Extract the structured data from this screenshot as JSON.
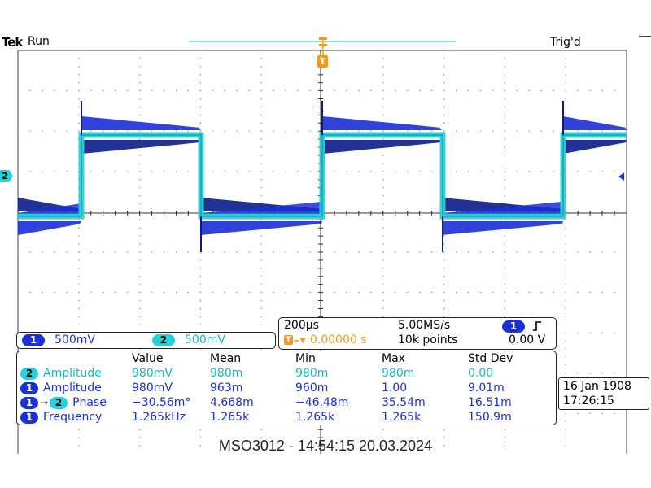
{
  "header": {
    "brand": "Tek",
    "status": "Run",
    "trigger_state": "Trig'd"
  },
  "markers": {
    "ch2": "2",
    "trigger": "T"
  },
  "channel_bar": {
    "ch1": {
      "badge": "1",
      "scale": "500mV"
    },
    "ch2": {
      "badge": "2",
      "scale": "500mV"
    }
  },
  "timebase": {
    "time_per_div": "200µs",
    "sample_rate": "5.00MS/s",
    "trigger_position": "0.00000 s",
    "record_length": "10k points",
    "trigger_source": "1",
    "trigger_slope_icon": "rising-edge-icon",
    "trigger_level": "0.00 V"
  },
  "measurements": {
    "columns": [
      "Value",
      "Mean",
      "Min",
      "Max",
      "Std Dev"
    ],
    "rows": [
      {
        "badges": [
          "2"
        ],
        "name": "Amplitude",
        "values": [
          "980mV",
          "980m",
          "980m",
          "980m",
          "0.00"
        ]
      },
      {
        "badges": [
          "1"
        ],
        "name": "Amplitude",
        "values": [
          "980mV",
          "963m",
          "960m",
          "1.00",
          "9.01m"
        ]
      },
      {
        "badges": [
          "1",
          "2"
        ],
        "name": "Phase",
        "values": [
          "−30.56m°",
          "4.668m",
          "−46.48m",
          "35.54m",
          "16.51m"
        ]
      },
      {
        "badges": [
          "1"
        ],
        "name": "Frequency",
        "values": [
          "1.265kHz",
          "1.265k",
          "1.265k",
          "1.265k",
          "150.9m"
        ]
      }
    ]
  },
  "clock": {
    "date": "16 Jan  1908",
    "time": "17:26:15"
  },
  "footer": "MSO3012 - 14:54:15   20.03.2024",
  "colors": {
    "ch1": "#1b2fd6",
    "ch1_dark": "#0a1c8c",
    "ch2": "#27d1d9",
    "trigger": "#f29a1e",
    "grid": "#8a8a8a"
  }
}
